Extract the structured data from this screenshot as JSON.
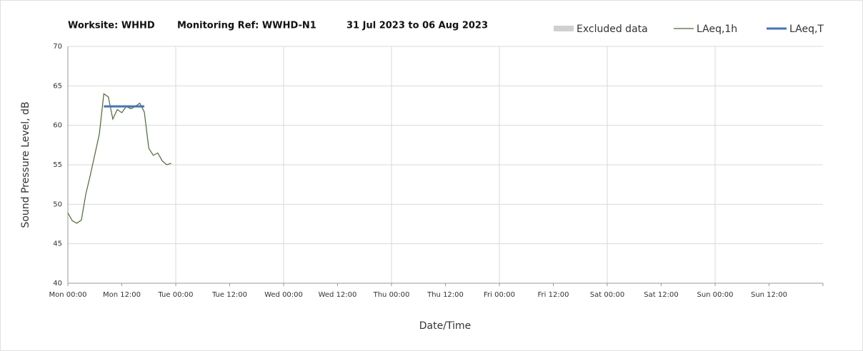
{
  "chart_data": {
    "type": "line",
    "title_parts": [
      "Worksite: WHHD",
      "Monitoring Ref: WWHD-N1",
      "31 Jul 2023 to 06 Aug 2023"
    ],
    "x_label": "Date/Time",
    "y_label": "Sound Pressure Level, dB",
    "xlim": [
      0,
      168
    ],
    "xticks": [
      {
        "value": 0,
        "label": "Mon 00:00"
      },
      {
        "value": 12,
        "label": "Mon 12:00"
      },
      {
        "value": 24,
        "label": "Tue 00:00"
      },
      {
        "value": 36,
        "label": "Tue 12:00"
      },
      {
        "value": 48,
        "label": "Wed 00:00"
      },
      {
        "value": 60,
        "label": "Wed 12:00"
      },
      {
        "value": 72,
        "label": "Thu 00:00"
      },
      {
        "value": 84,
        "label": "Thu 12:00"
      },
      {
        "value": 96,
        "label": "Fri 00:00"
      },
      {
        "value": 108,
        "label": "Fri 12:00"
      },
      {
        "value": 120,
        "label": "Sat 00:00"
      },
      {
        "value": 132,
        "label": "Sat 12:00"
      },
      {
        "value": 144,
        "label": "Sun 00:00"
      },
      {
        "value": 156,
        "label": "Sun 12:00"
      }
    ],
    "ylim": [
      40,
      70
    ],
    "yticks": [
      40,
      45,
      50,
      55,
      60,
      65,
      70
    ],
    "grid": true,
    "series": [
      {
        "name": "Excluded data",
        "color": "#d0d0d0",
        "kind": "area",
        "x": [],
        "values": []
      },
      {
        "name": "LAeq,1h",
        "color": "#4a6b32",
        "kind": "line",
        "width": 1.2,
        "x": [
          0,
          1,
          2,
          3,
          4,
          5,
          6,
          7,
          8,
          9,
          10,
          11,
          12,
          13,
          14,
          15,
          16,
          17,
          18,
          19,
          20,
          21,
          22,
          23
        ],
        "values": [
          48.9,
          47.9,
          47.6,
          48.0,
          51.3,
          53.7,
          56.3,
          58.9,
          64.0,
          63.6,
          60.8,
          62.0,
          61.6,
          62.4,
          62.1,
          62.4,
          62.8,
          61.7,
          57.1,
          56.2,
          56.5,
          55.5,
          55.0,
          55.2
        ]
      },
      {
        "name": "LAeq,T",
        "color": "#4472c4",
        "kind": "line",
        "width": 3,
        "x": [
          8,
          17
        ],
        "values": [
          62.4,
          62.4
        ]
      }
    ]
  }
}
